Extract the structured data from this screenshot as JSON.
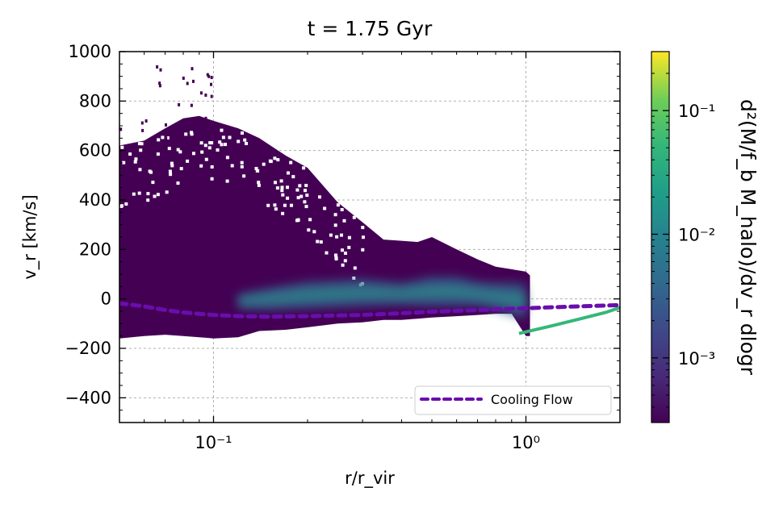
{
  "chart_data": {
    "type": "heatmap",
    "title": "t = 1.75 Gyr",
    "xlabel": "r/r_vir",
    "ylabel": "v_r [km/s]",
    "x_scale": "log",
    "xlim": [
      0.05,
      2.0
    ],
    "ylim": [
      -500,
      1000
    ],
    "x_ticks": [
      {
        "value": 0.1,
        "label": "10⁻¹"
      },
      {
        "value": 1.0,
        "label": "10⁰"
      }
    ],
    "y_ticks": [
      {
        "value": 1000,
        "label": "1000"
      },
      {
        "value": 800,
        "label": "800"
      },
      {
        "value": 600,
        "label": "600"
      },
      {
        "value": 400,
        "label": "400"
      },
      {
        "value": 200,
        "label": "200"
      },
      {
        "value": 0,
        "label": "0"
      },
      {
        "value": -200,
        "label": "−200"
      },
      {
        "value": -400,
        "label": "−400"
      }
    ],
    "grid": true,
    "colormap": "viridis",
    "colorbar": {
      "label": "d²(M/f_b M_halo)/dv_r dlogr",
      "scale": "log",
      "range": [
        0.0003,
        0.3
      ],
      "ticks": [
        {
          "value": 0.1,
          "label": "10⁻¹"
        },
        {
          "value": 0.01,
          "label": "10⁻²"
        },
        {
          "value": 0.001,
          "label": "10⁻³"
        }
      ]
    },
    "distribution_envelope": {
      "r": [
        0.05,
        0.06,
        0.07,
        0.08,
        0.09,
        0.1,
        0.12,
        0.14,
        0.17,
        0.2,
        0.25,
        0.3,
        0.35,
        0.4,
        0.45,
        0.5,
        0.6,
        0.7,
        0.8,
        0.9,
        1.0,
        1.03
      ],
      "v_max": [
        620,
        640,
        690,
        730,
        740,
        720,
        690,
        650,
        580,
        530,
        390,
        310,
        240,
        235,
        230,
        250,
        200,
        160,
        130,
        120,
        110,
        95
      ],
      "v_min": [
        -160,
        -150,
        -145,
        -150,
        -155,
        -160,
        -155,
        -130,
        -125,
        -115,
        -100,
        -95,
        -85,
        -85,
        -80,
        -75,
        -70,
        -65,
        -60,
        -60,
        -150,
        -150
      ]
    },
    "dense_core": {
      "r": [
        0.12,
        0.15,
        0.2,
        0.3,
        0.4,
        0.5,
        0.6,
        0.7,
        0.8,
        0.9,
        1.0
      ],
      "v_center": [
        -10,
        0,
        15,
        25,
        20,
        30,
        30,
        20,
        10,
        0,
        -10
      ],
      "halfwidth": [
        30,
        45,
        55,
        55,
        45,
        60,
        60,
        50,
        55,
        65,
        70
      ]
    },
    "inflow_stream": {
      "r": [
        0.95,
        1.2,
        1.5,
        1.8,
        2.0
      ],
      "v": [
        -140,
        -110,
        -80,
        -55,
        -35
      ]
    },
    "series": [
      {
        "name": "Cooling Flow",
        "style": "dashed",
        "color": "#6a0dad",
        "x": [
          0.05,
          0.06,
          0.07,
          0.08,
          0.1,
          0.12,
          0.15,
          0.2,
          0.3,
          0.4,
          0.5,
          0.6,
          0.7,
          0.8,
          1.0,
          1.2,
          1.5,
          1.8,
          2.0
        ],
        "y": [
          -18,
          -30,
          -45,
          -55,
          -65,
          -70,
          -72,
          -70,
          -65,
          -58,
          -52,
          -48,
          -45,
          -42,
          -38,
          -34,
          -30,
          -27,
          -25
        ]
      }
    ],
    "legend": {
      "position": "bottom-right",
      "entries": [
        "Cooling Flow"
      ]
    }
  },
  "colors": {
    "heat_low": "#440154",
    "heat_mid": "#21918c",
    "heat_high": "#fde725",
    "cooling_flow": "#6a0dad"
  }
}
